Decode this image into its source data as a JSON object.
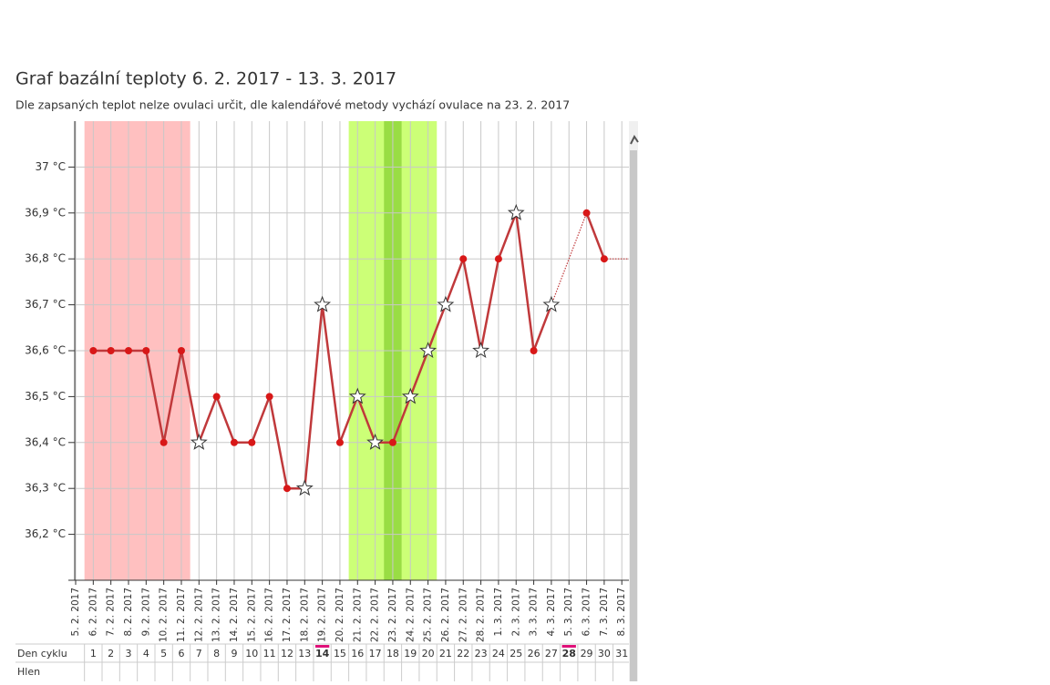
{
  "chart_data": {
    "type": "line",
    "title": "Graf bazální teploty 6. 2. 2017 - 13. 3. 2017",
    "subtitle": "Dle zapsaných teplot nelze ovulaci určit, dle kalendářové metody vychází ovulace na 23. 2. 2017",
    "categories": [
      "5. 2. 2017",
      "6. 2. 2017",
      "7. 2. 2017",
      "8. 2. 2017",
      "9. 2. 2017",
      "10. 2. 2017",
      "11. 2. 2017",
      "12. 2. 2017",
      "13. 2. 2017",
      "14. 2. 2017",
      "15. 2. 2017",
      "16. 2. 2017",
      "17. 2. 2017",
      "18. 2. 2017",
      "19. 2. 2017",
      "20. 2. 2017",
      "21. 2. 2017",
      "22. 2. 2017",
      "23. 2. 2017",
      "24. 2. 2017",
      "25. 2. 2017",
      "26. 2. 2017",
      "27. 2. 2017",
      "28. 2. 2017",
      "1. 3. 2017",
      "2. 3. 2017",
      "3. 3. 2017",
      "4. 3. 2017",
      "5. 3. 2017",
      "6. 3. 2017",
      "7. 3. 2017",
      "8. 3. 2017"
    ],
    "series": [
      {
        "color": "#c0393b",
        "point_color": "#d81818",
        "values": [
          null,
          36.6,
          36.6,
          36.6,
          36.6,
          36.4,
          36.6,
          36.4,
          36.5,
          36.4,
          36.4,
          36.5,
          36.3,
          36.3,
          36.7,
          36.4,
          36.5,
          36.4,
          36.4,
          36.5,
          36.6,
          36.7,
          36.8,
          36.6,
          36.8,
          36.9,
          36.6,
          36.7,
          null,
          36.9,
          36.8,
          null
        ],
        "markers": [
          null,
          "dot",
          "dot",
          "dot",
          "dot",
          "dot",
          "dot",
          "star",
          "dot",
          "dot",
          "dot",
          "dot",
          "dot",
          "star",
          "star",
          "dot",
          "star",
          "star",
          "dot",
          "star",
          "star",
          "star",
          "dot",
          "star",
          "dot",
          "star",
          "dot",
          "star",
          null,
          "dot",
          "dot",
          null
        ]
      }
    ],
    "bands": [
      {
        "from": "6. 2. 2017",
        "to": "11. 2. 2017",
        "color": "#ffc0c0"
      },
      {
        "from": "21. 2. 2017",
        "to": "25. 2. 2017",
        "color": "#ccff77"
      },
      {
        "from": "23. 2. 2017",
        "to": "23. 2. 2017",
        "color": "#99dd44"
      }
    ],
    "ylim": [
      36.1,
      37.1
    ],
    "yticks": [
      {
        "value": 36.2,
        "label": "36,2 °C"
      },
      {
        "value": 36.3,
        "label": "36,3 °C"
      },
      {
        "value": 36.4,
        "label": "36,4 °C"
      },
      {
        "value": 36.5,
        "label": "36,5 °C"
      },
      {
        "value": 36.6,
        "label": "36,6 °C"
      },
      {
        "value": 36.7,
        "label": "36,7 °C"
      },
      {
        "value": 36.8,
        "label": "36,8 °C"
      },
      {
        "value": 36.9,
        "label": "36,9 °C"
      },
      {
        "value": 37,
        "label": "37 °C"
      }
    ],
    "grid": true
  },
  "cycle_table": {
    "row_label": "Den cyklu",
    "days": [
      1,
      2,
      3,
      4,
      5,
      6,
      7,
      8,
      9,
      10,
      11,
      12,
      13,
      14,
      15,
      16,
      17,
      18,
      19,
      20,
      21,
      22,
      23,
      24,
      25,
      26,
      27,
      28,
      29,
      30,
      31
    ],
    "highlighted": [
      14,
      28
    ],
    "highlight_color": "#e0107a",
    "second_row_label": "Hlen"
  }
}
